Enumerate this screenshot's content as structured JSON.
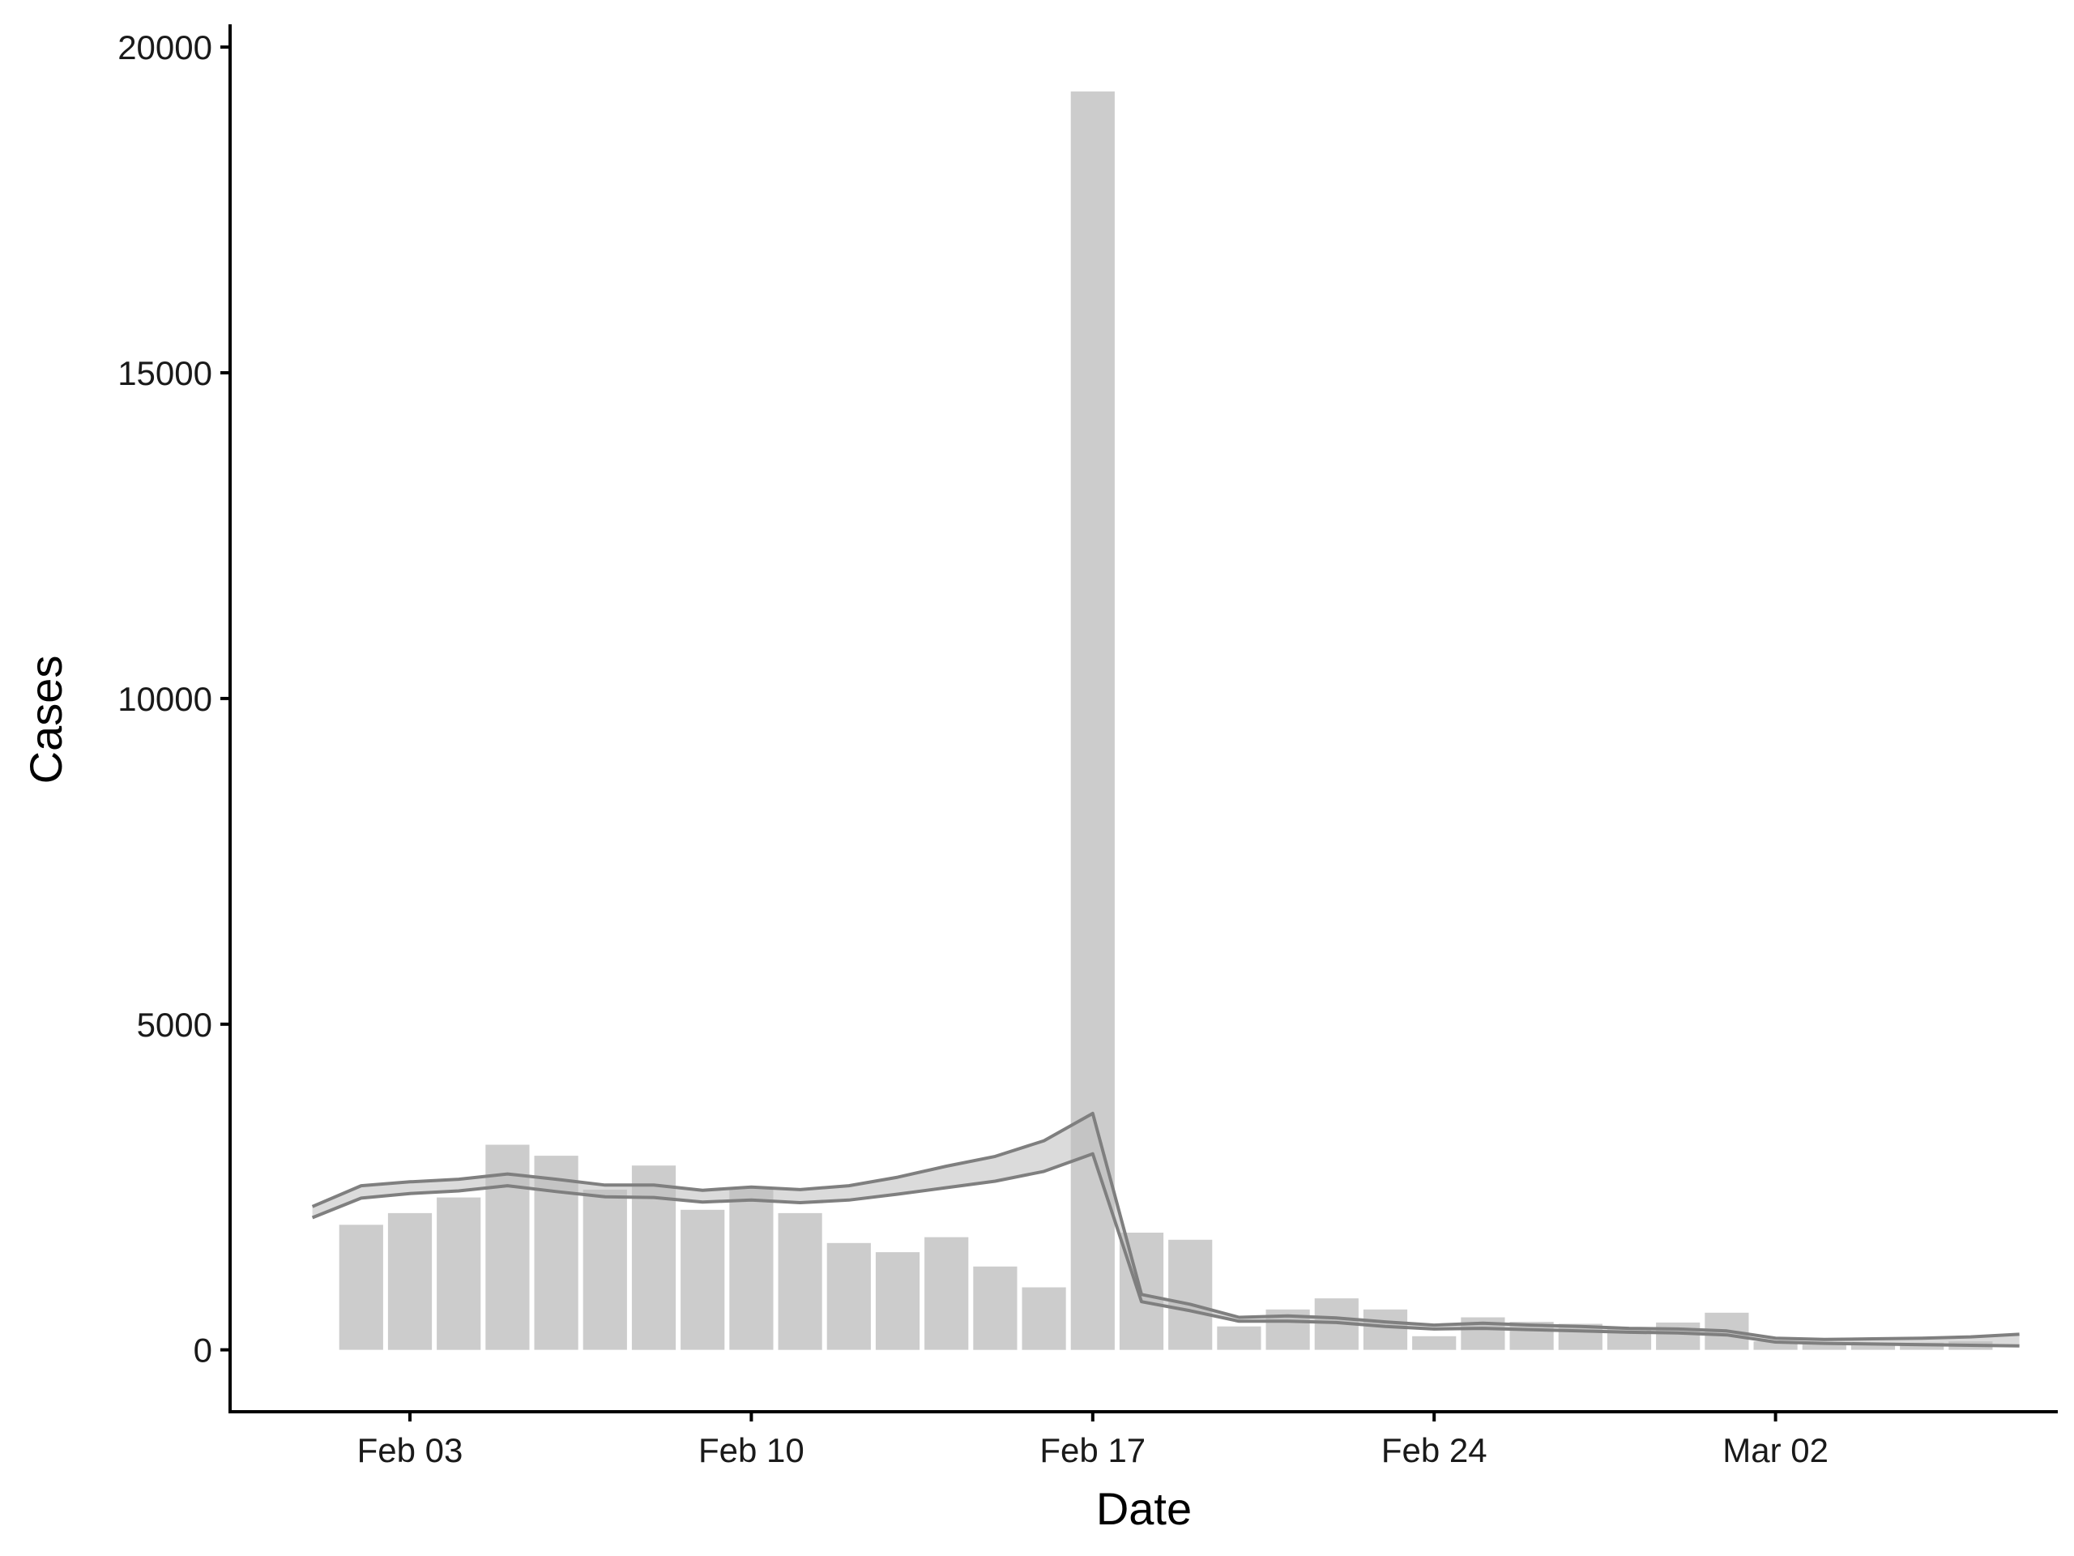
{
  "chart_data": {
    "type": "bar",
    "title": "",
    "xlabel": "Date",
    "ylabel": "Cases",
    "ylim": [
      -950,
      20350
    ],
    "yticks": [
      0,
      5000,
      10000,
      15000,
      20000
    ],
    "xticks": [
      {
        "date": "2020-02-03",
        "label": "Feb 03"
      },
      {
        "date": "2020-02-10",
        "label": "Feb 10"
      },
      {
        "date": "2020-02-17",
        "label": "Feb 17"
      },
      {
        "date": "2020-02-24",
        "label": "Feb 24"
      },
      {
        "date": "2020-03-02",
        "label": "Mar 02"
      }
    ],
    "grid": false,
    "legend": "none",
    "bar_color": "#cccccc",
    "line_color": "#7f7f7f",
    "bars": {
      "dates": [
        "2020-02-02",
        "2020-02-03",
        "2020-02-04",
        "2020-02-05",
        "2020-02-06",
        "2020-02-07",
        "2020-02-08",
        "2020-02-09",
        "2020-02-10",
        "2020-02-11",
        "2020-02-12",
        "2020-02-13",
        "2020-02-14",
        "2020-02-15",
        "2020-02-16",
        "2020-02-17",
        "2020-02-18",
        "2020-02-19",
        "2020-02-20",
        "2020-02-21",
        "2020-02-22",
        "2020-02-23",
        "2020-02-24",
        "2020-02-25",
        "2020-02-26",
        "2020-02-27",
        "2020-02-28",
        "2020-02-29",
        "2020-03-01",
        "2020-03-02",
        "2020-03-03",
        "2020-03-04",
        "2020-03-05",
        "2020-03-06"
      ],
      "values": [
        1920,
        2100,
        2340,
        3150,
        2980,
        2460,
        2830,
        2150,
        2480,
        2100,
        1640,
        1500,
        1730,
        1280,
        960,
        19320,
        1800,
        1690,
        360,
        620,
        790,
        620,
        210,
        500,
        430,
        400,
        330,
        420,
        570,
        130,
        110,
        110,
        110,
        130
      ]
    },
    "series": [
      {
        "role": "upper",
        "dates": [
          "2020-02-01",
          "2020-02-02",
          "2020-02-03",
          "2020-02-04",
          "2020-02-05",
          "2020-02-06",
          "2020-02-07",
          "2020-02-08",
          "2020-02-09",
          "2020-02-10",
          "2020-02-11",
          "2020-02-12",
          "2020-02-13",
          "2020-02-14",
          "2020-02-15",
          "2020-02-16",
          "2020-02-17",
          "2020-02-18",
          "2020-02-19",
          "2020-02-20",
          "2020-02-21",
          "2020-02-22",
          "2020-02-23",
          "2020-02-24",
          "2020-02-25",
          "2020-02-26",
          "2020-02-27",
          "2020-02-28",
          "2020-02-29",
          "2020-03-01",
          "2020-03-02",
          "2020-03-03",
          "2020-03-04",
          "2020-03-05",
          "2020-03-06",
          "2020-03-07"
        ],
        "values": [
          2200,
          2520,
          2580,
          2620,
          2700,
          2620,
          2530,
          2530,
          2450,
          2500,
          2460,
          2520,
          2650,
          2820,
          2970,
          3210,
          3630,
          850,
          700,
          500,
          520,
          490,
          430,
          380,
          410,
          380,
          360,
          330,
          320,
          290,
          180,
          160,
          170,
          180,
          200,
          240
        ]
      },
      {
        "role": "lower",
        "dates": [
          "2020-02-01",
          "2020-02-02",
          "2020-02-03",
          "2020-02-04",
          "2020-02-05",
          "2020-02-06",
          "2020-02-07",
          "2020-02-08",
          "2020-02-09",
          "2020-02-10",
          "2020-02-11",
          "2020-02-12",
          "2020-02-13",
          "2020-02-14",
          "2020-02-15",
          "2020-02-16",
          "2020-02-17",
          "2020-02-18",
          "2020-02-19",
          "2020-02-20",
          "2020-02-21",
          "2020-02-22",
          "2020-02-23",
          "2020-02-24",
          "2020-02-25",
          "2020-02-26",
          "2020-02-27",
          "2020-02-28",
          "2020-02-29",
          "2020-03-01",
          "2020-03-02",
          "2020-03-03",
          "2020-03-04",
          "2020-03-05",
          "2020-03-06",
          "2020-03-07"
        ],
        "values": [
          2030,
          2330,
          2400,
          2440,
          2520,
          2430,
          2350,
          2340,
          2270,
          2300,
          2260,
          2300,
          2390,
          2490,
          2590,
          2740,
          3010,
          740,
          600,
          440,
          440,
          420,
          360,
          320,
          330,
          310,
          290,
          270,
          260,
          230,
          120,
          100,
          90,
          80,
          70,
          60
        ]
      }
    ]
  }
}
